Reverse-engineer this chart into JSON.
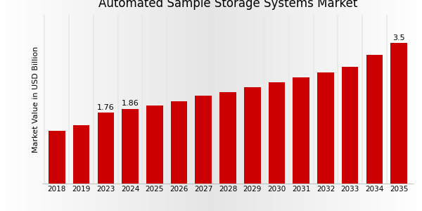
{
  "title": "Automated Sample Storage Systems Market",
  "ylabel": "Market Value in USD Billion",
  "years": [
    "2018",
    "2019",
    "2023",
    "2024",
    "2025",
    "2026",
    "2027",
    "2028",
    "2029",
    "2030",
    "2031",
    "2032",
    "2033",
    "2034",
    "2035"
  ],
  "values": [
    1.32,
    1.45,
    1.76,
    1.86,
    1.95,
    2.05,
    2.18,
    2.28,
    2.4,
    2.52,
    2.64,
    2.76,
    2.9,
    3.2,
    3.5
  ],
  "labeled_indices": [
    2,
    3,
    14
  ],
  "labels": [
    "1.76",
    "1.86",
    "3.5"
  ],
  "bar_color": "#cc0000",
  "title_fontsize": 12,
  "ylabel_fontsize": 8,
  "tick_fontsize": 7.5,
  "label_fontsize": 8,
  "ylim": [
    0,
    4.2
  ],
  "red_strip_color": "#cc0000",
  "white_gap_color": "#e8e8e8"
}
